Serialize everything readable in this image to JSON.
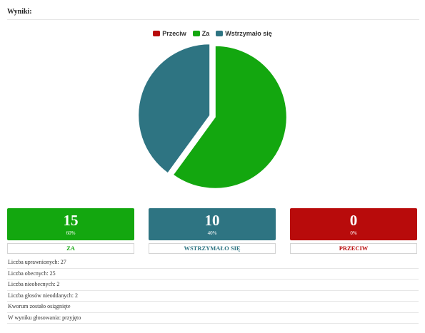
{
  "header": {
    "title": "Wyniki:"
  },
  "colors": {
    "przeciw": "#b80b0b",
    "za": "#13a70f",
    "wstrzymalo": "#2e7482"
  },
  "chart_data": {
    "type": "pie",
    "legend": [
      "Przeciw",
      "Za",
      "Wstrzymało się"
    ],
    "legend_placement": "top",
    "slices": [
      {
        "label": "Przeciw",
        "value": 0,
        "color": "#b80b0b"
      },
      {
        "label": "Za",
        "value": 15,
        "color": "#13a70f"
      },
      {
        "label": "Wstrzymało się",
        "value": 10,
        "color": "#2e7482"
      }
    ]
  },
  "cards": [
    {
      "value": "15",
      "percent": "60%",
      "label": "ZA"
    },
    {
      "value": "10",
      "percent": "40%",
      "label": "WSTRZYMAŁO SIĘ"
    },
    {
      "value": "0",
      "percent": "0%",
      "label": "PRZECIW"
    }
  ],
  "info": [
    "Liczba uprawnionych: 27",
    "Liczba obecnych: 25",
    "Liczba nieobecnych: 2",
    "Liczba głosów nieoddanych: 2",
    "Kworum zostało osiągnięte",
    "W wyniku głosowania: przyjęto"
  ]
}
